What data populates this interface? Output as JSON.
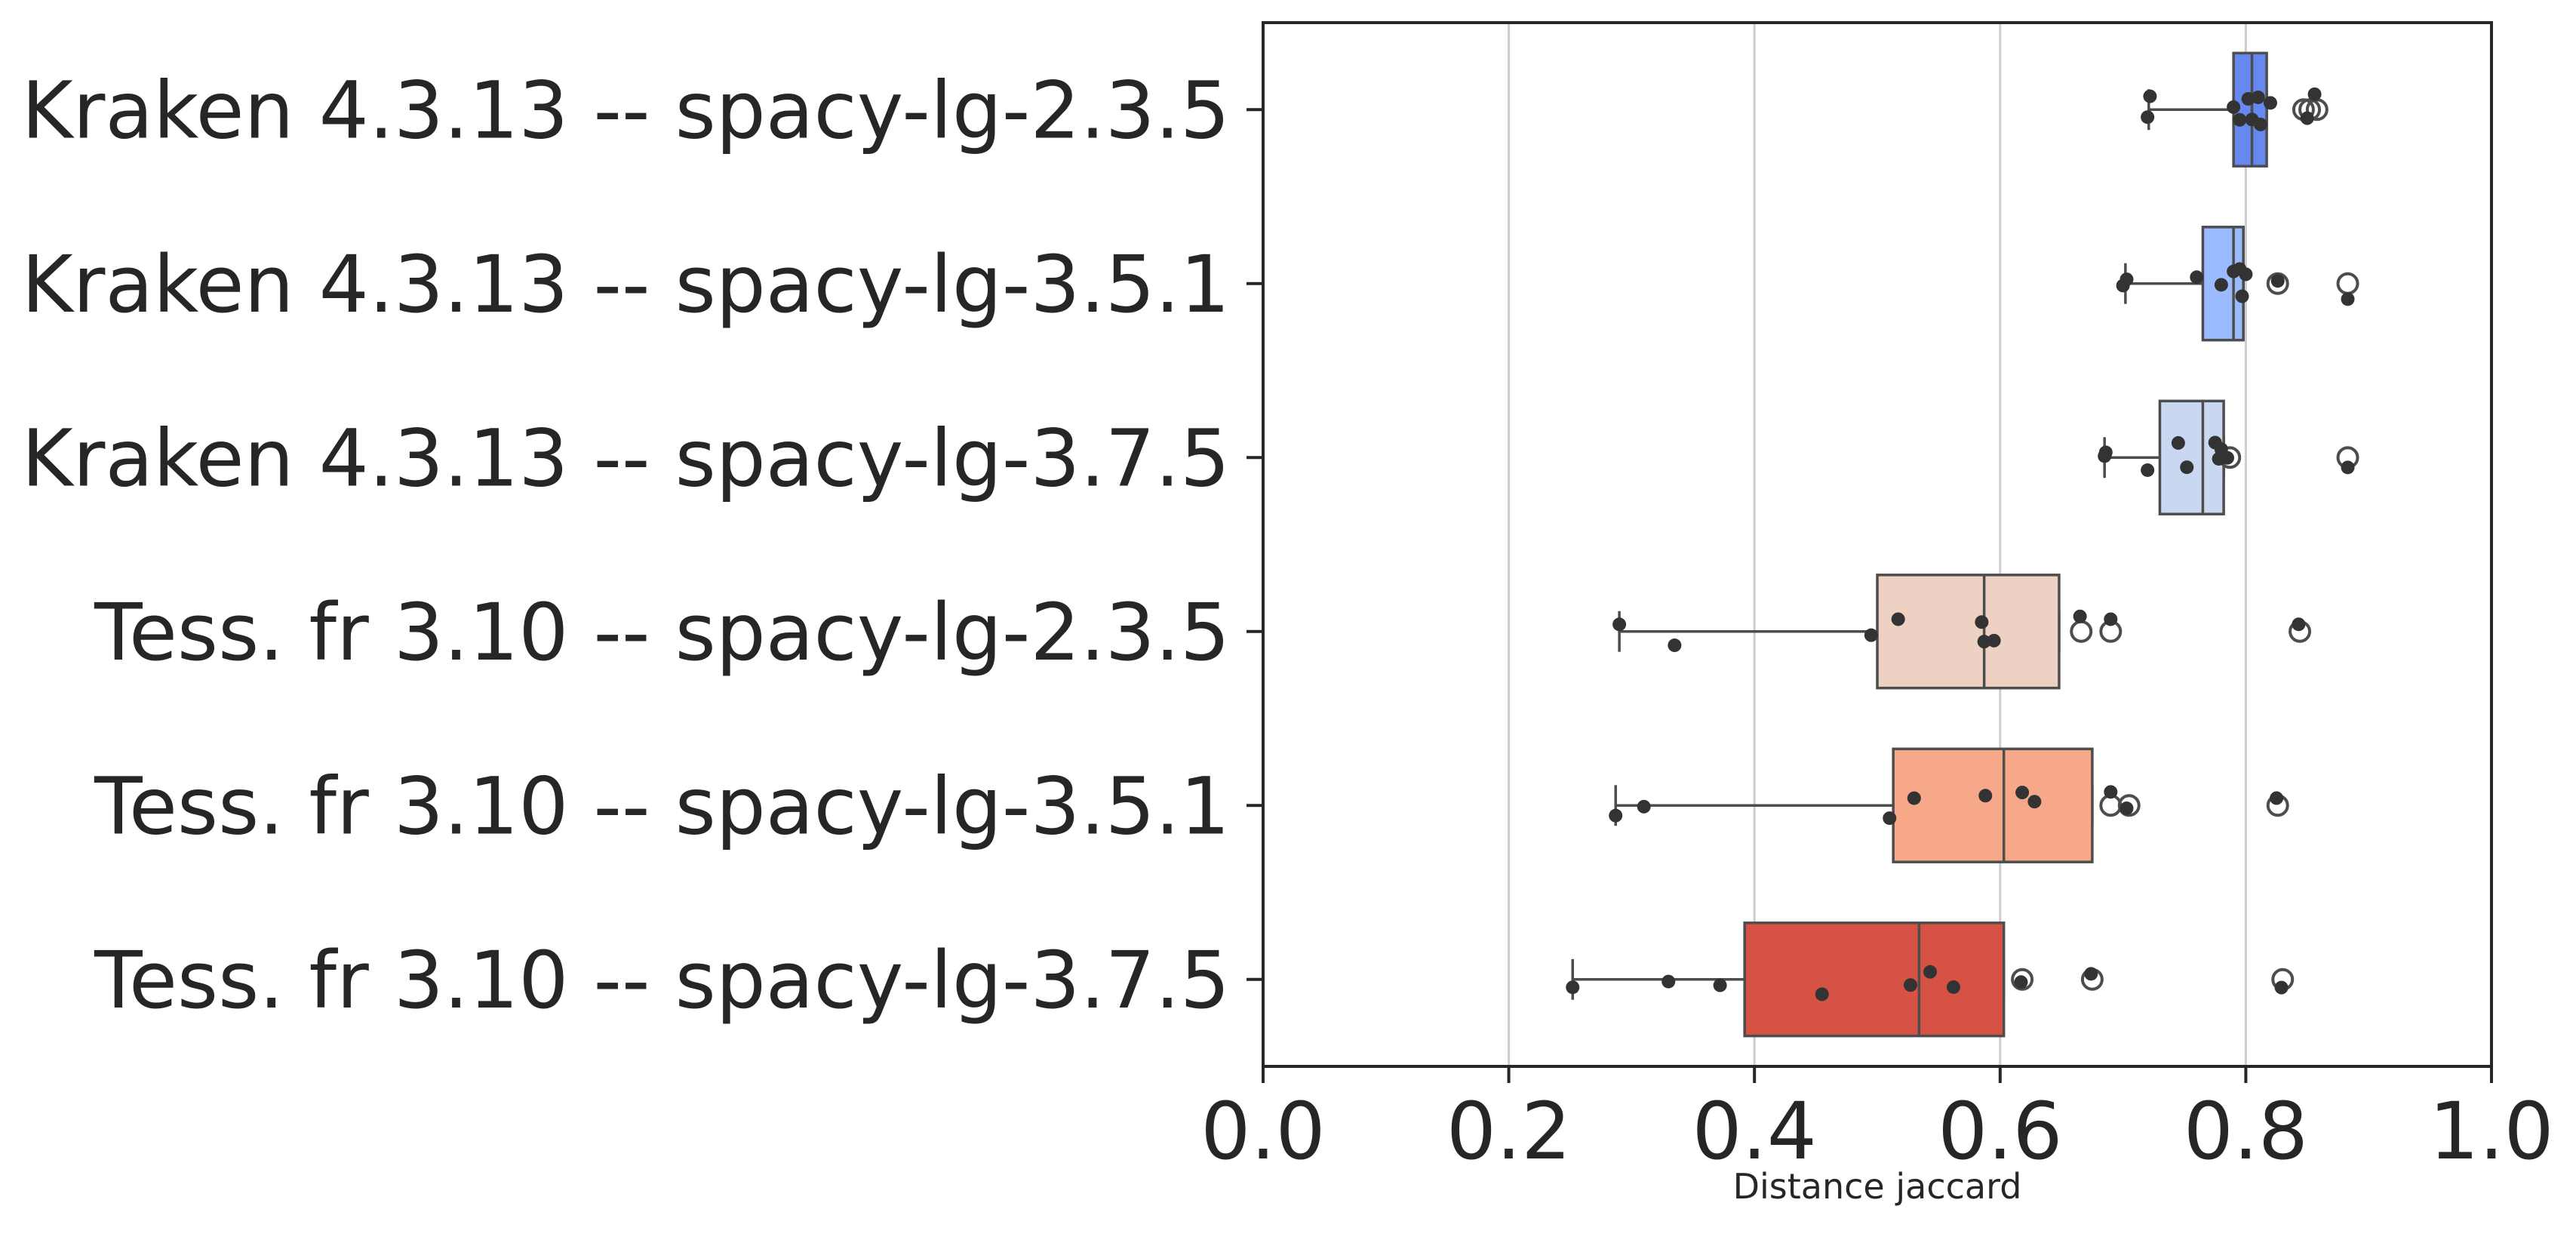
{
  "chart_data": {
    "type": "boxplot",
    "orientation": "horizontal",
    "xlabel": "Distance jaccard",
    "xlim": [
      0.0,
      1.0
    ],
    "xticks": [
      "0.0",
      "0.2",
      "0.4",
      "0.6",
      "0.8",
      "1.0"
    ],
    "grid": "vertical",
    "series": [
      {
        "name": "Kraken 4.3.13 -- spacy-lg-2.3.5",
        "color": "#6788ee",
        "q1": 0.79,
        "median": 0.805,
        "q3": 0.817,
        "whisker_low": 0.721,
        "whisker_high": 0.817,
        "outliers": [
          0.847,
          0.852,
          0.858
        ],
        "points": [
          0.72,
          0.722,
          0.79,
          0.795,
          0.802,
          0.805,
          0.81,
          0.812,
          0.82,
          0.85,
          0.856
        ]
      },
      {
        "name": "Kraken 4.3.13 -- spacy-lg-3.5.1",
        "color": "#9abbff",
        "q1": 0.765,
        "median": 0.79,
        "q3": 0.798,
        "whisker_low": 0.702,
        "whisker_high": 0.798,
        "outliers": [
          0.826,
          0.883
        ],
        "points": [
          0.7,
          0.703,
          0.76,
          0.78,
          0.79,
          0.795,
          0.797,
          0.8,
          0.826,
          0.883
        ]
      },
      {
        "name": "Kraken 4.3.13 -- spacy-lg-3.7.5",
        "color": "#c9d7f0",
        "q1": 0.73,
        "median": 0.765,
        "q3": 0.782,
        "whisker_low": 0.685,
        "whisker_high": 0.782,
        "outliers": [
          0.787,
          0.883
        ],
        "points": [
          0.685,
          0.686,
          0.72,
          0.745,
          0.752,
          0.775,
          0.778,
          0.78,
          0.785,
          0.883
        ]
      },
      {
        "name": "Tess. fr 3.10 -- spacy-lg-2.3.5",
        "color": "#edd1c2",
        "q1": 0.5,
        "median": 0.587,
        "q3": 0.648,
        "whisker_low": 0.29,
        "whisker_high": 0.648,
        "outliers": [
          0.666,
          0.69,
          0.844
        ],
        "points": [
          0.29,
          0.335,
          0.495,
          0.517,
          0.585,
          0.587,
          0.595,
          0.665,
          0.69,
          0.843
        ]
      },
      {
        "name": "Tess. fr 3.10 -- spacy-lg-3.5.1",
        "color": "#f7a889",
        "q1": 0.513,
        "median": 0.603,
        "q3": 0.675,
        "whisker_low": 0.287,
        "whisker_high": 0.675,
        "outliers": [
          0.69,
          0.705,
          0.826
        ],
        "points": [
          0.287,
          0.31,
          0.51,
          0.53,
          0.588,
          0.618,
          0.628,
          0.69,
          0.703,
          0.825
        ]
      },
      {
        "name": "Tess. fr 3.10 -- spacy-lg-3.7.5",
        "color": "#d65244",
        "q1": 0.392,
        "median": 0.534,
        "q3": 0.603,
        "whisker_low": 0.252,
        "whisker_high": 0.603,
        "outliers": [
          0.618,
          0.675,
          0.83
        ],
        "points": [
          0.252,
          0.33,
          0.372,
          0.455,
          0.527,
          0.543,
          0.562,
          0.617,
          0.674,
          0.829
        ]
      }
    ]
  }
}
